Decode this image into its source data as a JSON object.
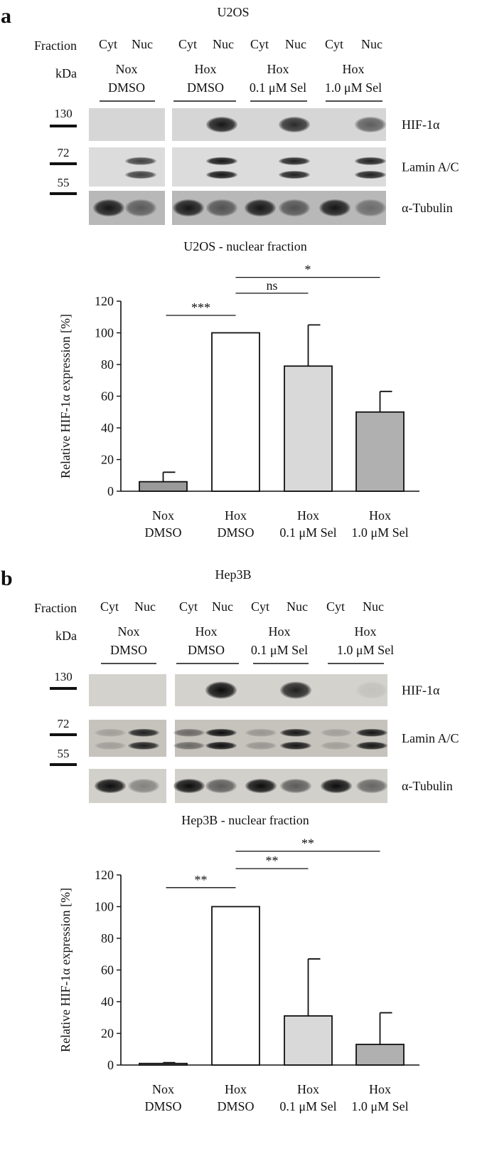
{
  "panels": [
    {
      "letter": "a",
      "cell_line": "U2OS",
      "fraction_label": "Fraction",
      "kda_label": "kDa",
      "lane_labels": [
        "Cyt",
        "Nuc",
        "Cyt",
        "Nuc",
        "Cyt",
        "Nuc",
        "Cyt",
        "Nuc"
      ],
      "groups": [
        {
          "line1": "Nox",
          "line2": "DMSO"
        },
        {
          "line1": "Hox",
          "line2": "DMSO"
        },
        {
          "line1": "Hox",
          "line2": "0.1 μM Sel"
        },
        {
          "line1": "Hox",
          "line2": "1.0 μM Sel"
        }
      ],
      "markers": [
        "130",
        "72",
        "55"
      ],
      "blots": [
        {
          "label": "HIF-1α",
          "lanes": [
            0,
            0,
            0,
            0.95,
            0,
            0.85,
            0,
            0.6
          ]
        },
        {
          "label": "Lamin A/C",
          "lanes": [
            0,
            0.75,
            0,
            0.95,
            0,
            0.9,
            0,
            0.9
          ]
        },
        {
          "label": "α-Tubulin",
          "lanes": [
            0.95,
            0.55,
            0.95,
            0.6,
            0.95,
            0.6,
            0.95,
            0.45
          ]
        }
      ]
    },
    {
      "letter": "b",
      "cell_line": "Hep3B",
      "fraction_label": "Fraction",
      "kda_label": "kDa",
      "lane_labels": [
        "Cyt",
        "Nuc",
        "Cyt",
        "Nuc",
        "Cyt",
        "Nuc",
        "Cyt",
        "Nuc"
      ],
      "groups": [
        {
          "line1": "Nox",
          "line2": "DMSO"
        },
        {
          "line1": "Hox",
          "line2": "DMSO"
        },
        {
          "line1": "Hox",
          "line2": "0.1 μM Sel"
        },
        {
          "line1": "Hox",
          "line2": "1.0 μM Sel"
        }
      ],
      "markers": [
        "130",
        "72",
        "55"
      ],
      "blots": [
        {
          "label": "HIF-1α",
          "lanes": [
            0,
            0,
            0,
            1.0,
            0,
            0.9,
            0,
            0.08
          ]
        },
        {
          "label": "Lamin A/C",
          "lanes": [
            0.2,
            0.9,
            0.5,
            1.0,
            0.25,
            0.95,
            0.2,
            0.95
          ]
        },
        {
          "label": "α-Tubulin",
          "lanes": [
            1.0,
            0.4,
            1.0,
            0.6,
            1.0,
            0.6,
            1.0,
            0.55
          ]
        }
      ]
    }
  ],
  "chart_data": [
    {
      "type": "bar",
      "title": "U2OS - nuclear fraction",
      "ylabel": "Relative HIF-1α expression [%]",
      "ylim": [
        0,
        120
      ],
      "yticks": [
        "0",
        "20",
        "40",
        "60",
        "80",
        "100",
        "120"
      ],
      "categories": [
        {
          "line1": "Nox",
          "line2": "DMSO"
        },
        {
          "line1": "Hox",
          "line2": "DMSO"
        },
        {
          "line1": "Hox",
          "line2": "0.1 μM Sel"
        },
        {
          "line1": "Hox",
          "line2": "1.0 μM Sel"
        }
      ],
      "values": [
        6,
        100,
        79,
        50
      ],
      "errors": [
        6,
        0,
        26,
        13
      ],
      "colors": [
        "#9a9a9a",
        "#ffffff",
        "#d9d9d9",
        "#b0b0b0"
      ],
      "significance": [
        {
          "from": 0,
          "to": 1,
          "label": "***",
          "y": 111
        },
        {
          "from": 1,
          "to": 2,
          "label": "ns",
          "y": 125
        },
        {
          "from": 1,
          "to": 3,
          "label": "*",
          "y": 135
        }
      ],
      "grid": false
    },
    {
      "type": "bar",
      "title": "Hep3B - nuclear fraction",
      "ylabel": "Relative HIF-1α expression [%]",
      "ylim": [
        0,
        120
      ],
      "yticks": [
        "0",
        "20",
        "40",
        "60",
        "80",
        "100",
        "120"
      ],
      "categories": [
        {
          "line1": "Nox",
          "line2": "DMSO"
        },
        {
          "line1": "Hox",
          "line2": "DMSO"
        },
        {
          "line1": "Hox",
          "line2": "0.1 μM Sel"
        },
        {
          "line1": "Hox",
          "line2": "1.0 μM Sel"
        }
      ],
      "values": [
        1,
        100,
        31,
        13
      ],
      "errors": [
        0.5,
        0,
        36,
        20
      ],
      "colors": [
        "#9a9a9a",
        "#ffffff",
        "#d9d9d9",
        "#b0b0b0"
      ],
      "significance": [
        {
          "from": 0,
          "to": 1,
          "label": "**",
          "y": 112
        },
        {
          "from": 1,
          "to": 2,
          "label": "**",
          "y": 124
        },
        {
          "from": 1,
          "to": 3,
          "label": "**",
          "y": 135
        }
      ],
      "grid": false
    }
  ]
}
